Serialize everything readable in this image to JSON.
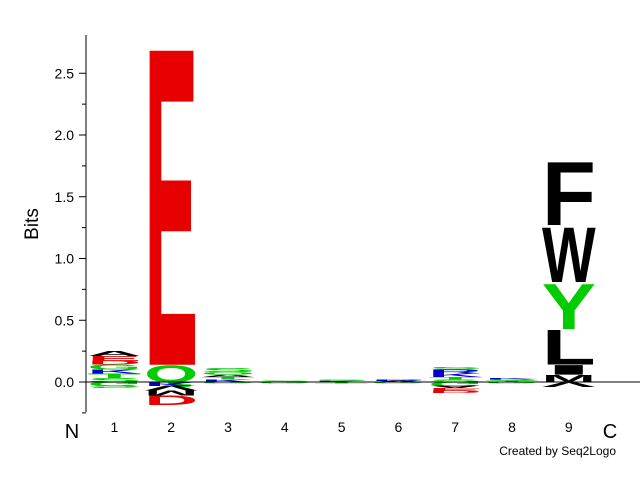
{
  "chart_data": {
    "type": "sequence-logo",
    "ylabel": "Bits",
    "ylim": [
      -0.25,
      2.8
    ],
    "yticks": [
      0.0,
      0.5,
      1.0,
      1.5,
      2.0,
      2.5
    ],
    "ytick_labels": [
      "0.0",
      "0.5",
      "1.0",
      "1.5",
      "2.0",
      "2.5"
    ],
    "start_label": "N",
    "end_label": "C",
    "positions": [
      "1",
      "2",
      "3",
      "4",
      "5",
      "6",
      "7",
      "8",
      "9"
    ],
    "colors": {
      "E": "#e60000",
      "D": "#e60000",
      "Q": "#00cc00",
      "Y": "#00cc00",
      "F": "#000000",
      "W": "#000000",
      "L": "#000000",
      "I": "#000000",
      "M": "#000000",
      "V": "#000000",
      "A": "#000000",
      "K": "#0000cc",
      "R": "#0000cc",
      "S": "#00cc00",
      "T": "#00cc00",
      "G": "#00cc00"
    },
    "columns": [
      {
        "position": "1",
        "positive": [
          {
            "letter": "S",
            "bits": 0.03
          },
          {
            "letter": "T",
            "bits": 0.04
          },
          {
            "letter": "K",
            "bits": 0.03
          },
          {
            "letter": "G",
            "bits": 0.04
          },
          {
            "letter": "D",
            "bits": 0.03
          },
          {
            "letter": "E",
            "bits": 0.04
          },
          {
            "letter": "A",
            "bits": 0.04
          }
        ],
        "negative": [
          {
            "letter": "G",
            "bits": 0.03
          },
          {
            "letter": "S",
            "bits": 0.02
          }
        ]
      },
      {
        "position": "2",
        "positive": [
          {
            "letter": "Q",
            "bits": 0.14
          },
          {
            "letter": "E",
            "bits": 2.66
          }
        ],
        "negative": [
          {
            "letter": "K",
            "bits": 0.03
          },
          {
            "letter": "V",
            "bits": 0.04
          },
          {
            "letter": "M",
            "bits": 0.04
          },
          {
            "letter": "D",
            "bits": 0.08
          }
        ]
      },
      {
        "position": "3",
        "positive": [
          {
            "letter": "K",
            "bits": 0.02
          },
          {
            "letter": "T",
            "bits": 0.02
          },
          {
            "letter": "A",
            "bits": 0.02
          },
          {
            "letter": "Q",
            "bits": 0.02
          },
          {
            "letter": "S",
            "bits": 0.03
          }
        ],
        "negative": [
          {
            "letter": "G",
            "bits": 0.01
          }
        ]
      },
      {
        "position": "4",
        "positive": [
          {
            "letter": "S",
            "bits": 0.01
          }
        ],
        "negative": [
          {
            "letter": "G",
            "bits": 0.01
          }
        ]
      },
      {
        "position": "5",
        "positive": [
          {
            "letter": "K",
            "bits": 0.01
          },
          {
            "letter": "S",
            "bits": 0.01
          }
        ],
        "negative": [
          {
            "letter": "T",
            "bits": 0.01
          }
        ]
      },
      {
        "position": "6",
        "positive": [
          {
            "letter": "A",
            "bits": 0.01
          },
          {
            "letter": "R",
            "bits": 0.01
          }
        ],
        "negative": [
          {
            "letter": "G",
            "bits": 0.01
          }
        ]
      },
      {
        "position": "7",
        "positive": [
          {
            "letter": "S",
            "bits": 0.02
          },
          {
            "letter": "T",
            "bits": 0.02
          },
          {
            "letter": "K",
            "bits": 0.03
          },
          {
            "letter": "R",
            "bits": 0.03
          },
          {
            "letter": "S",
            "bits": 0.02
          }
        ],
        "negative": [
          {
            "letter": "G",
            "bits": 0.03
          },
          {
            "letter": "A",
            "bits": 0.02
          },
          {
            "letter": "E",
            "bits": 0.02
          },
          {
            "letter": "D",
            "bits": 0.02
          }
        ]
      },
      {
        "position": "8",
        "positive": [
          {
            "letter": "T",
            "bits": 0.01
          },
          {
            "letter": "S",
            "bits": 0.01
          },
          {
            "letter": "K",
            "bits": 0.01
          }
        ],
        "negative": [
          {
            "letter": "G",
            "bits": 0.01
          }
        ]
      },
      {
        "position": "9",
        "positive": [
          {
            "letter": "M",
            "bits": 0.06
          },
          {
            "letter": "I",
            "bits": 0.08
          },
          {
            "letter": "L",
            "bits": 0.29
          },
          {
            "letter": "Y",
            "bits": 0.38
          },
          {
            "letter": "W",
            "bits": 0.46
          },
          {
            "letter": "F",
            "bits": 0.53
          }
        ],
        "negative": [
          {
            "letter": "V",
            "bits": 0.04
          }
        ]
      }
    ]
  },
  "footer": {
    "credit": "Created by Seq2Logo"
  }
}
